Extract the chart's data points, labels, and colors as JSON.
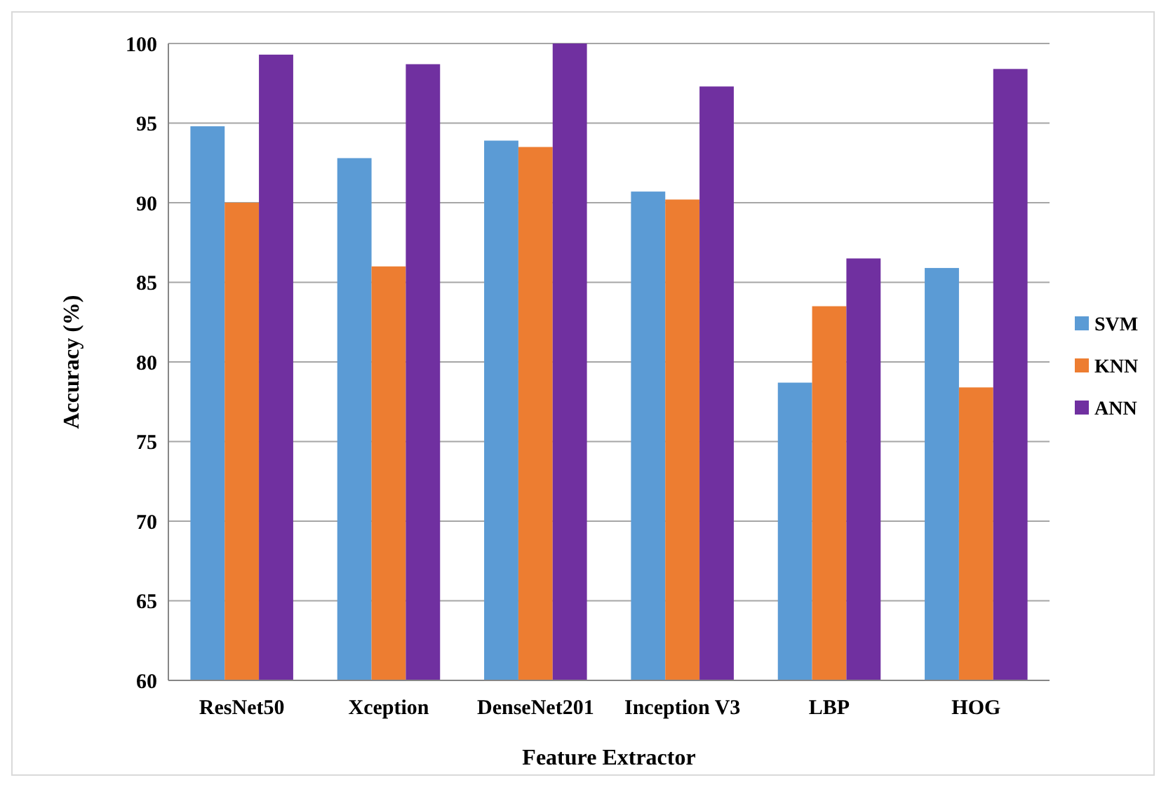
{
  "chart_data": {
    "type": "bar",
    "xlabel": "Feature Extractor",
    "ylabel": "Accuracy (%)",
    "categories": [
      "ResNet50",
      "Xception",
      "DenseNet201",
      "Inception V3",
      "LBP",
      "HOG"
    ],
    "series": [
      {
        "name": "SVM",
        "color": "#5b9bd5",
        "values": [
          94.8,
          92.8,
          93.9,
          90.7,
          78.7,
          85.9
        ]
      },
      {
        "name": "KNN",
        "color": "#ed7d31",
        "values": [
          90.0,
          86.0,
          93.5,
          90.2,
          83.5,
          78.4
        ]
      },
      {
        "name": "ANN",
        "color": "#7030a0",
        "values": [
          99.3,
          98.7,
          100,
          97.3,
          86.5,
          98.4
        ]
      }
    ],
    "ylim": [
      60,
      100
    ],
    "yticks": [
      60,
      65,
      70,
      75,
      80,
      85,
      90,
      95,
      100
    ],
    "grid": "y",
    "legend": "right"
  }
}
